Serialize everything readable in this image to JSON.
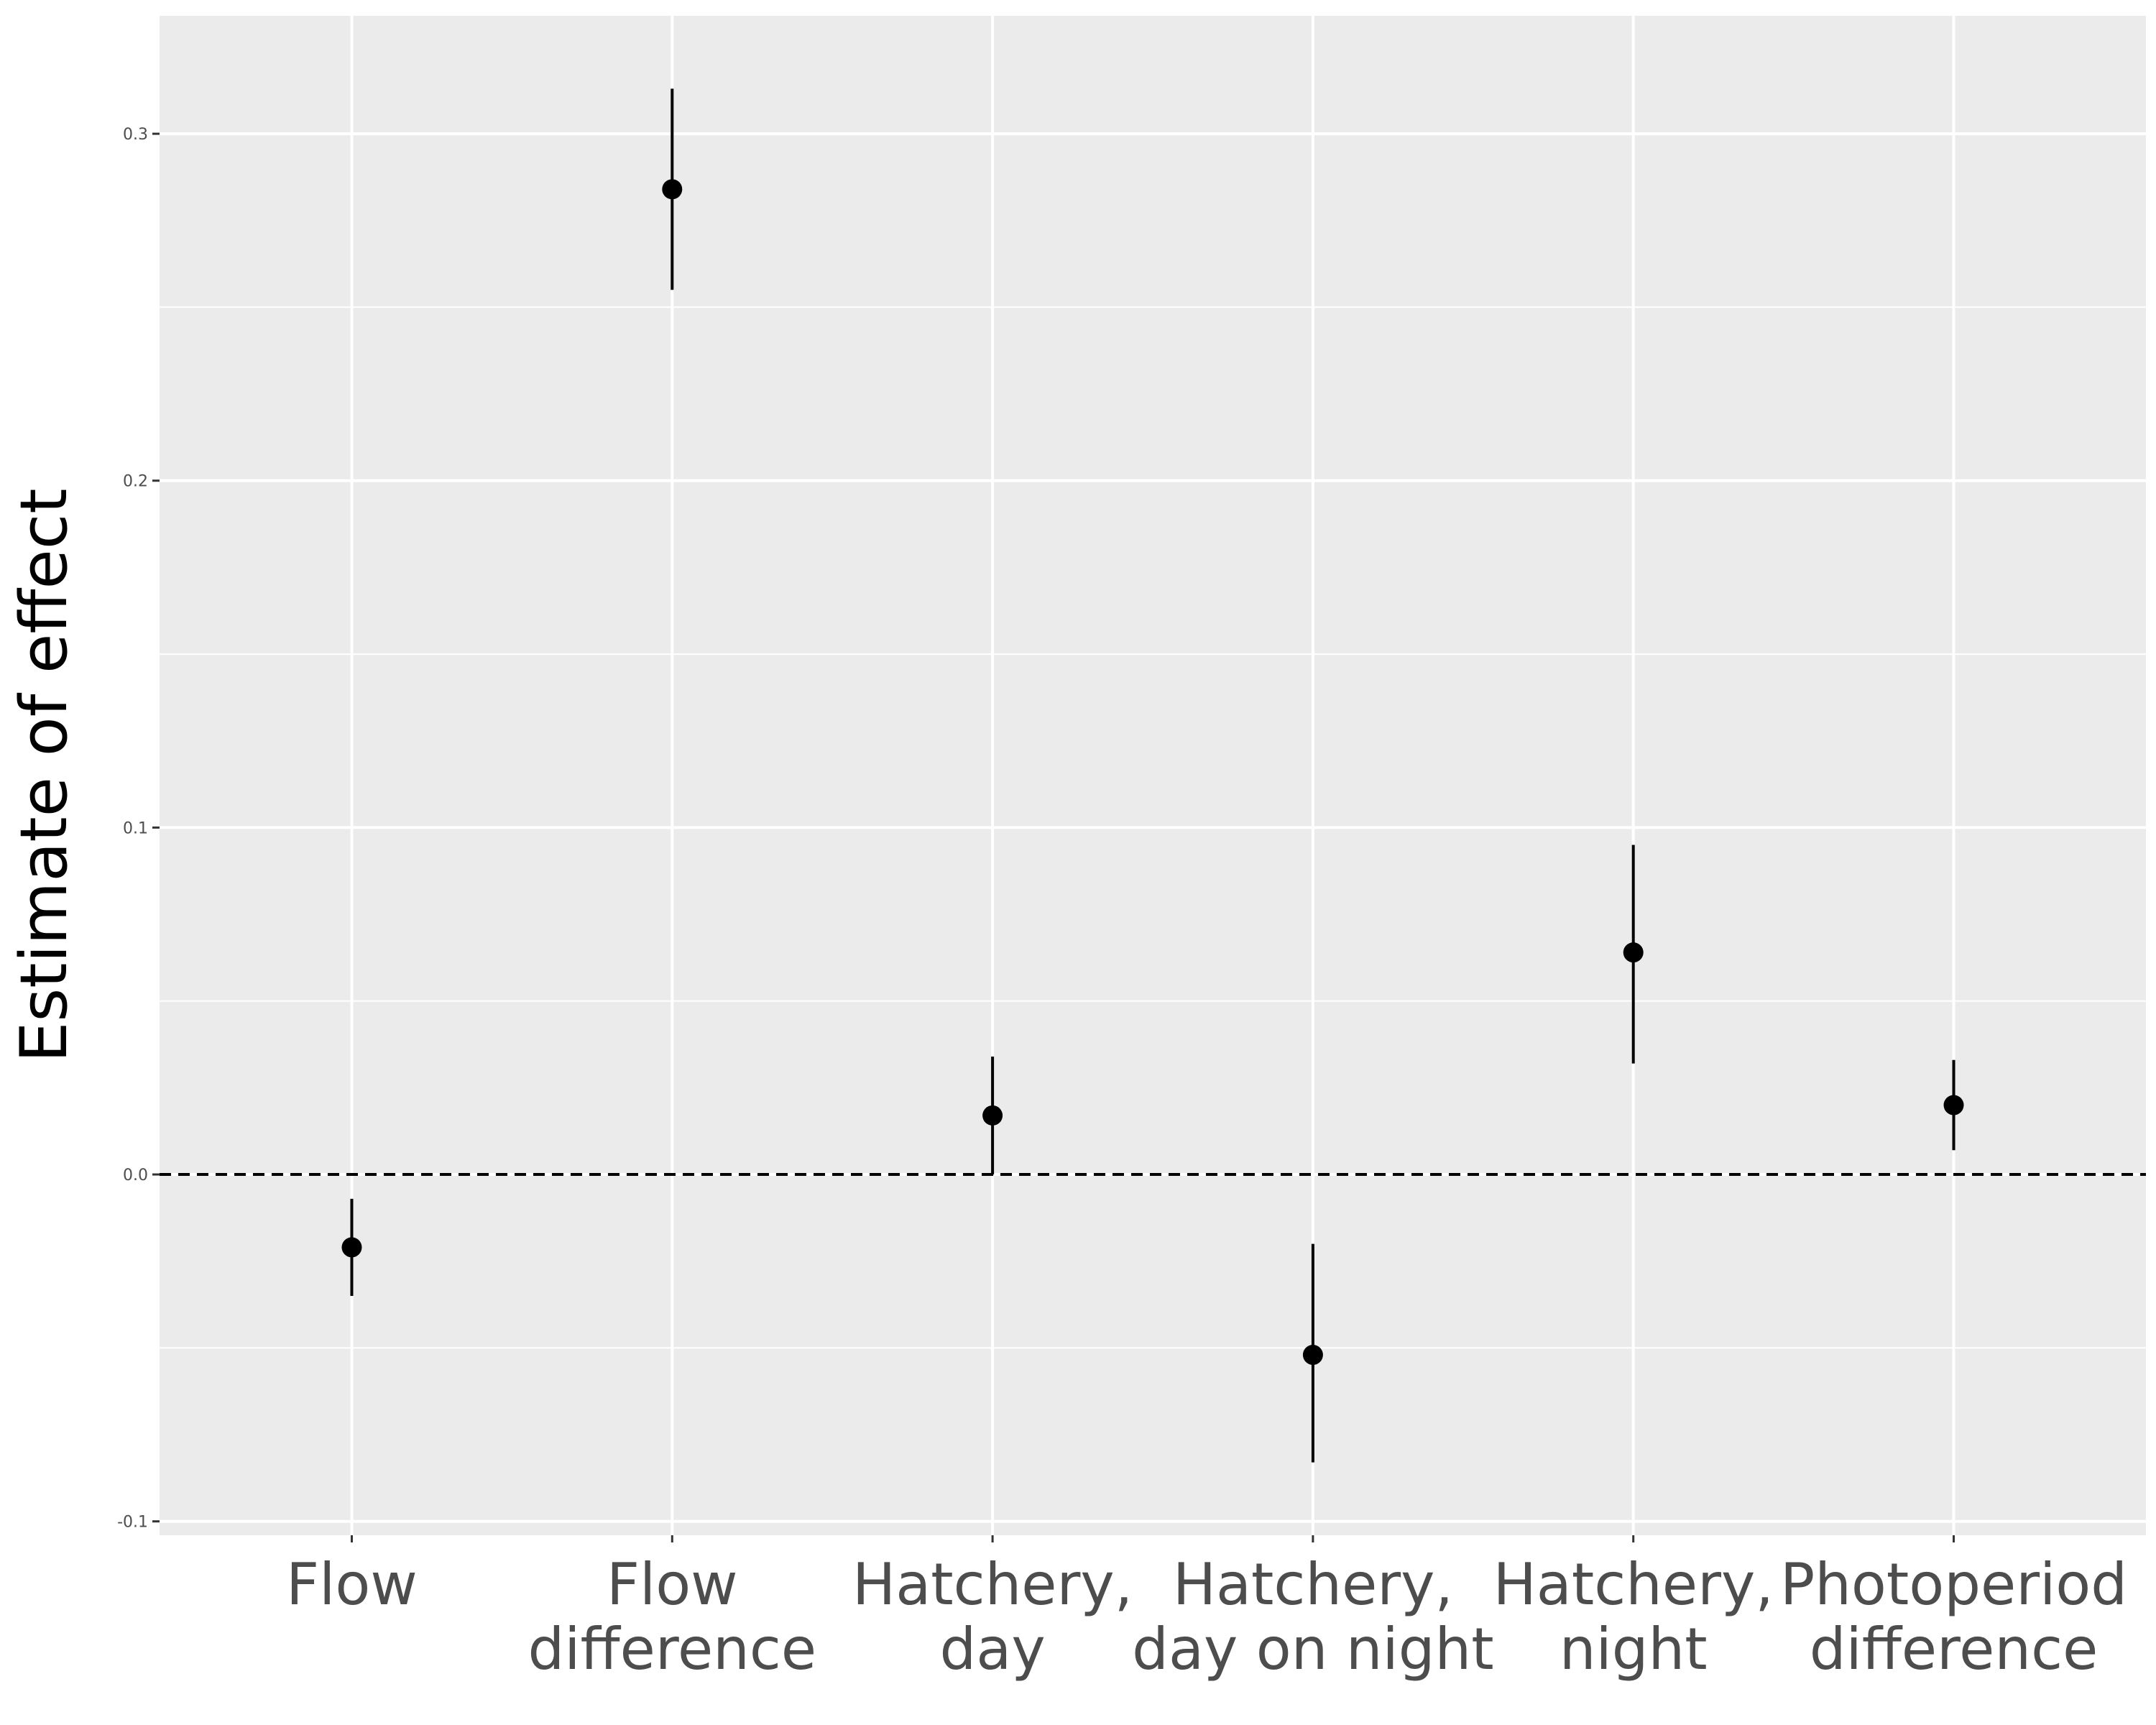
{
  "chart_data": {
    "type": "scatter",
    "title": "",
    "xlabel": "",
    "ylabel": "Estimate of effect",
    "ylim": [
      -0.104,
      0.334
    ],
    "y_ticks": [
      "0.3",
      "0.2",
      "0.1",
      "0.0",
      "-0.1"
    ],
    "y_tick_values": [
      0.3,
      0.2,
      0.1,
      0.0,
      -0.1
    ],
    "grid": true,
    "reference_line": {
      "y": 0.0,
      "style": "dashed"
    },
    "categories": [
      {
        "lines": [
          "Flow"
        ]
      },
      {
        "lines": [
          "Flow",
          "difference"
        ]
      },
      {
        "lines": [
          "Hatchery,",
          "day"
        ]
      },
      {
        "lines": [
          "Hatchery,",
          "day on night"
        ]
      },
      {
        "lines": [
          "Hatchery,",
          "night"
        ]
      },
      {
        "lines": [
          "Photoperiod",
          "difference"
        ]
      }
    ],
    "points": [
      {
        "estimate": -0.021,
        "lower": -0.035,
        "upper": -0.007
      },
      {
        "estimate": 0.284,
        "lower": 0.255,
        "upper": 0.313
      },
      {
        "estimate": 0.017,
        "lower": 0.0,
        "upper": 0.034
      },
      {
        "estimate": -0.052,
        "lower": -0.083,
        "upper": -0.02
      },
      {
        "estimate": 0.064,
        "lower": 0.032,
        "upper": 0.095
      },
      {
        "estimate": 0.02,
        "lower": 0.007,
        "upper": 0.033
      }
    ],
    "colors": {
      "panel": "#ebebeb",
      "grid": "#ffffff",
      "point": "#000000",
      "ref_line": "#000000"
    }
  }
}
